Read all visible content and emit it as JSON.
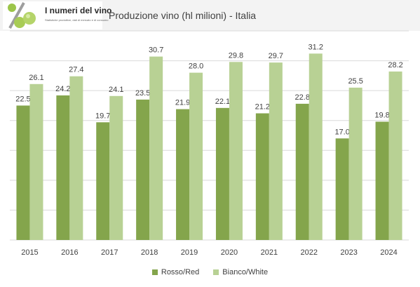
{
  "header": {
    "logo_title": "I numeri del vino",
    "logo_subtitle": "Statistiche produttive, dati di mercato e di consumo"
  },
  "colors": {
    "rosso": "#84a54c",
    "bianco": "#b8d194",
    "grid": "#d9d9d9",
    "header_bg": "#f3f3f3"
  },
  "chart_data": {
    "type": "bar",
    "title": "Produzione vino (hl milioni) - Italia",
    "categories": [
      "2015",
      "2016",
      "2017",
      "2018",
      "2019",
      "2020",
      "2021",
      "2022",
      "2023",
      "2024"
    ],
    "series": [
      {
        "name": "Rosso/Red",
        "values": [
          22.5,
          24.2,
          19.7,
          23.5,
          21.9,
          22.1,
          21.2,
          22.8,
          17.0,
          19.8
        ]
      },
      {
        "name": "Bianco/White",
        "values": [
          26.1,
          27.4,
          24.1,
          30.7,
          28.0,
          29.8,
          29.7,
          31.2,
          25.5,
          28.2
        ]
      }
    ],
    "xlabel": "",
    "ylabel": "",
    "ylim": [
      0,
      35
    ],
    "grid": true,
    "legend_position": "bottom"
  }
}
